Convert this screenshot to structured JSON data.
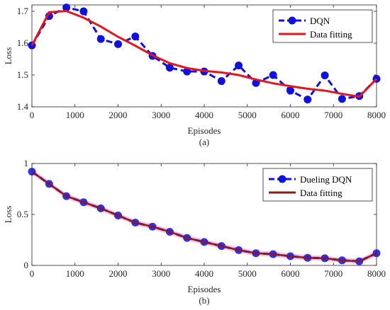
{
  "chart_data": [
    {
      "type": "line",
      "x": [
        0,
        400,
        800,
        1200,
        1600,
        2000,
        2400,
        2800,
        3200,
        3600,
        4000,
        4400,
        4800,
        5200,
        5600,
        6000,
        6400,
        6800,
        7200,
        7600,
        8000
      ],
      "xlabel": "Episodes",
      "ylabel": "Loss",
      "xlim": [
        0,
        8000
      ],
      "ylim": [
        1.4,
        1.72
      ],
      "xticks": [
        0,
        1000,
        2000,
        3000,
        4000,
        5000,
        6000,
        7000,
        8000
      ],
      "yticks": [
        1.4,
        1.5,
        1.6,
        1.7
      ],
      "ytick_labels": [
        "1.4",
        "1.5",
        "1.6",
        "1.7"
      ],
      "caption": "(a)",
      "legend_position": "top-right",
      "series": [
        {
          "name": "DQN",
          "style": "dashed-markers",
          "color": "#1010e0",
          "values": [
            1.593,
            1.685,
            1.712,
            1.7,
            1.613,
            1.597,
            1.621,
            1.56,
            1.523,
            1.511,
            1.511,
            1.481,
            1.53,
            1.475,
            1.5,
            1.451,
            1.423,
            1.499,
            1.425,
            1.434,
            1.488
          ]
        },
        {
          "name": "Data fitting",
          "style": "solid",
          "color": "#e8141c",
          "values": [
            1.593,
            1.697,
            1.701,
            1.68,
            1.652,
            1.62,
            1.592,
            1.562,
            1.537,
            1.522,
            1.513,
            1.508,
            1.5,
            1.486,
            1.474,
            1.465,
            1.457,
            1.451,
            1.441,
            1.432,
            1.488
          ]
        }
      ]
    },
    {
      "type": "line",
      "x": [
        0,
        400,
        800,
        1200,
        1600,
        2000,
        2400,
        2800,
        3200,
        3600,
        4000,
        4400,
        4800,
        5200,
        5600,
        6000,
        6400,
        6800,
        7200,
        7600,
        8000
      ],
      "xlabel": "Episodes",
      "ylabel": "Loss",
      "xlim": [
        0,
        8000
      ],
      "ylim": [
        0,
        1
      ],
      "xticks": [
        0,
        1000,
        2000,
        3000,
        4000,
        5000,
        6000,
        7000,
        8000
      ],
      "yticks": [
        0,
        0.5,
        1
      ],
      "ytick_labels": [
        "0",
        "0.5",
        "1"
      ],
      "caption": "(b)",
      "legend_position": "top-right",
      "series": [
        {
          "name": "Dueling DQN",
          "style": "dashed-markers",
          "color": "#1010e0",
          "values": [
            0.92,
            0.8,
            0.68,
            0.62,
            0.56,
            0.49,
            0.42,
            0.38,
            0.33,
            0.27,
            0.23,
            0.19,
            0.15,
            0.12,
            0.11,
            0.09,
            0.075,
            0.07,
            0.05,
            0.04,
            0.12
          ]
        },
        {
          "name": "Data fitting",
          "style": "solid",
          "color": "#8b1c1c",
          "values": [
            0.92,
            0.8,
            0.68,
            0.62,
            0.56,
            0.49,
            0.42,
            0.38,
            0.33,
            0.27,
            0.23,
            0.19,
            0.15,
            0.12,
            0.11,
            0.09,
            0.075,
            0.07,
            0.05,
            0.04,
            0.12
          ]
        }
      ],
      "confidence_band_color": "#f2a6e6"
    }
  ]
}
